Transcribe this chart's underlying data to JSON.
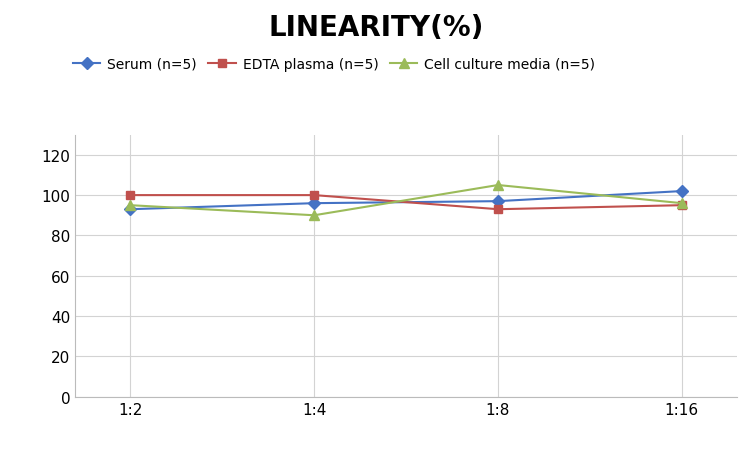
{
  "title": "LINEARITY(%)",
  "x_labels": [
    "1:2",
    "1:4",
    "1:8",
    "1:16"
  ],
  "series": [
    {
      "label": "Serum (n=5)",
      "values": [
        93,
        96,
        97,
        102
      ],
      "color": "#4472C4",
      "marker": "D",
      "markersize": 6
    },
    {
      "label": "EDTA plasma (n=5)",
      "values": [
        100,
        100,
        93,
        95
      ],
      "color": "#C0504D",
      "marker": "s",
      "markersize": 6
    },
    {
      "label": "Cell culture media (n=5)",
      "values": [
        95,
        90,
        105,
        96
      ],
      "color": "#9BBB59",
      "marker": "^",
      "markersize": 7
    }
  ],
  "ylim": [
    0,
    130
  ],
  "yticks": [
    0,
    20,
    40,
    60,
    80,
    100,
    120
  ],
  "background_color": "#FFFFFF",
  "grid_color": "#D3D3D3",
  "title_fontsize": 20,
  "legend_fontsize": 10,
  "tick_fontsize": 11
}
